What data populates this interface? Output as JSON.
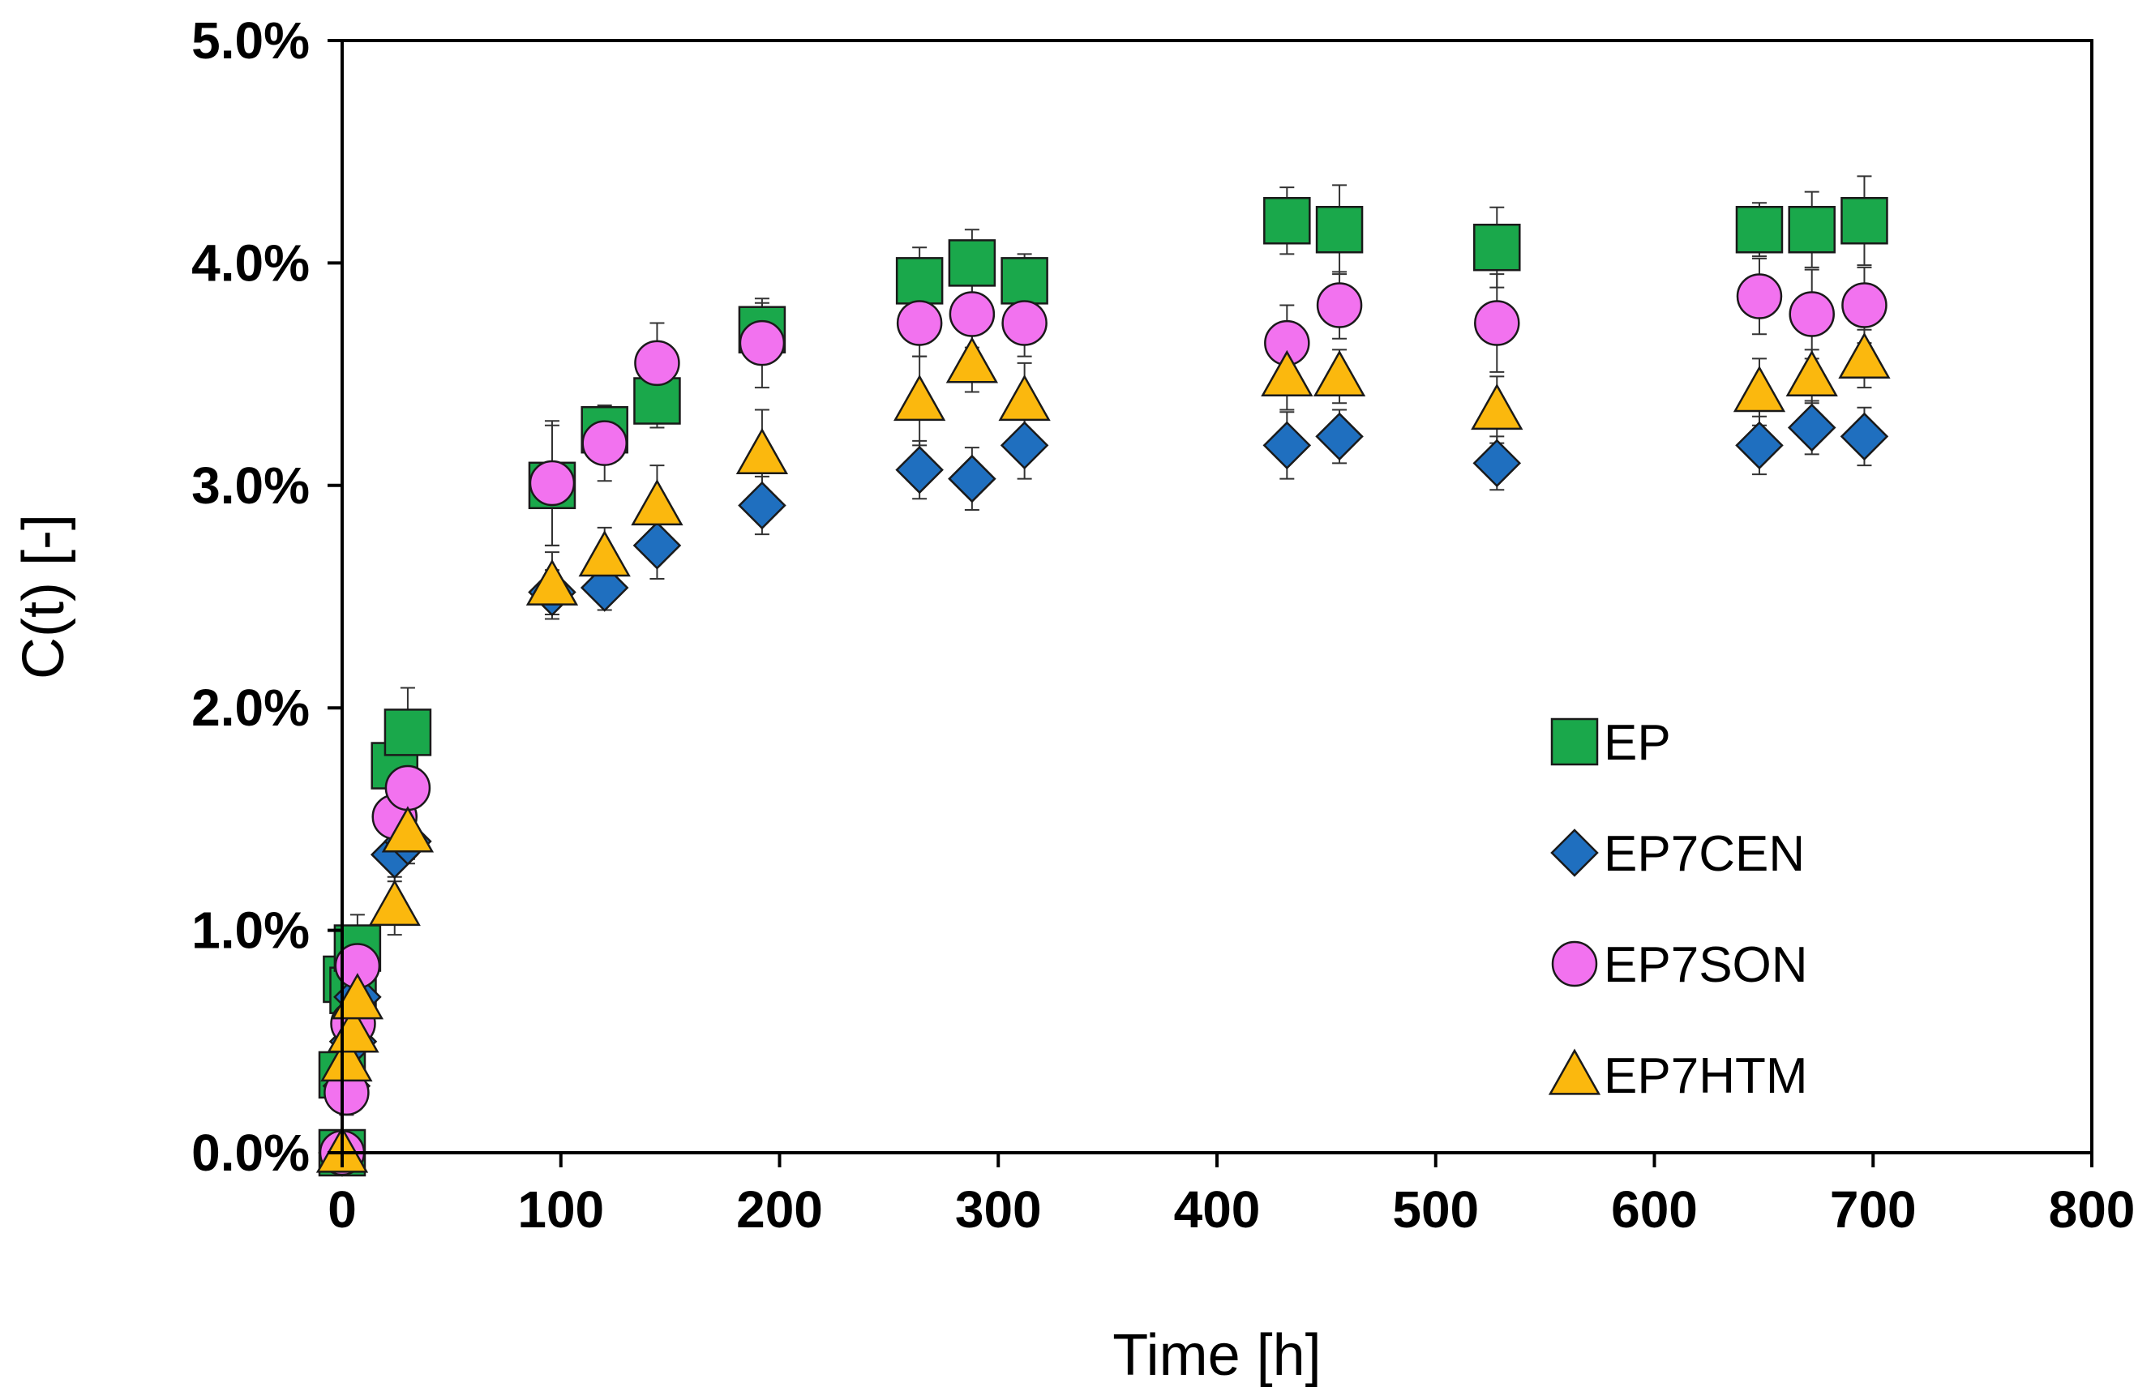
{
  "chart_data": {
    "type": "scatter",
    "title": "",
    "xlabel": "Time [h]",
    "ylabel": "C(t) [-]",
    "xlim": [
      0,
      800
    ],
    "ylim": [
      0,
      5
    ],
    "x_ticks": [
      0,
      100,
      200,
      300,
      400,
      500,
      600,
      700,
      800
    ],
    "x_tick_labels": [
      "0",
      "100",
      "200",
      "300",
      "400",
      "500",
      "600",
      "700",
      "800"
    ],
    "y_ticks": [
      0,
      1,
      2,
      3,
      4,
      5
    ],
    "y_tick_labels": [
      "0.0%",
      "1.0%",
      "2.0%",
      "3.0%",
      "4.0%",
      "5.0%"
    ],
    "grid": false,
    "legend_position": "bottom-right",
    "series": [
      {
        "name": "EP",
        "marker": "square",
        "color": "#1aa84b",
        "points": [
          {
            "x": 0,
            "y": 0.0,
            "err": 0.05
          },
          {
            "x": 0,
            "y": 0.35,
            "err": 0.08
          },
          {
            "x": 2,
            "y": 0.78,
            "err": 0.12
          },
          {
            "x": 5,
            "y": 0.73,
            "err": 0.13
          },
          {
            "x": 7,
            "y": 0.92,
            "err": 0.15
          },
          {
            "x": 24,
            "y": 1.74,
            "err": 0.17
          },
          {
            "x": 30,
            "y": 1.89,
            "err": 0.2
          },
          {
            "x": 96,
            "y": 3.0,
            "err": 0.27
          },
          {
            "x": 120,
            "y": 3.25,
            "err": 0.1
          },
          {
            "x": 144,
            "y": 3.38,
            "err": 0.12
          },
          {
            "x": 192,
            "y": 3.7,
            "err": 0.12
          },
          {
            "x": 264,
            "y": 3.92,
            "err": 0.15
          },
          {
            "x": 288,
            "y": 4.0,
            "err": 0.15
          },
          {
            "x": 312,
            "y": 3.92,
            "err": 0.12
          },
          {
            "x": 432,
            "y": 4.19,
            "err": 0.15
          },
          {
            "x": 456,
            "y": 4.15,
            "err": 0.2
          },
          {
            "x": 528,
            "y": 4.07,
            "err": 0.18
          },
          {
            "x": 648,
            "y": 4.15,
            "err": 0.12
          },
          {
            "x": 672,
            "y": 4.15,
            "err": 0.17
          },
          {
            "x": 696,
            "y": 4.19,
            "err": 0.2
          }
        ]
      },
      {
        "name": "EP7CEN",
        "marker": "diamond",
        "color": "#1f6fbf",
        "points": [
          {
            "x": 0,
            "y": 0.0,
            "err": 0.05
          },
          {
            "x": 2,
            "y": 0.3,
            "err": 0.08
          },
          {
            "x": 5,
            "y": 0.5,
            "err": 0.1
          },
          {
            "x": 7,
            "y": 0.7,
            "err": 0.1
          },
          {
            "x": 24,
            "y": 1.34,
            "err": 0.12
          },
          {
            "x": 30,
            "y": 1.4,
            "err": 0.1
          },
          {
            "x": 96,
            "y": 2.52,
            "err": 0.1
          },
          {
            "x": 120,
            "y": 2.54,
            "err": 0.1
          },
          {
            "x": 144,
            "y": 2.73,
            "err": 0.15
          },
          {
            "x": 192,
            "y": 2.91,
            "err": 0.13
          },
          {
            "x": 264,
            "y": 3.07,
            "err": 0.13
          },
          {
            "x": 288,
            "y": 3.03,
            "err": 0.14
          },
          {
            "x": 312,
            "y": 3.18,
            "err": 0.15
          },
          {
            "x": 432,
            "y": 3.18,
            "err": 0.15
          },
          {
            "x": 456,
            "y": 3.22,
            "err": 0.12
          },
          {
            "x": 528,
            "y": 3.1,
            "err": 0.12
          },
          {
            "x": 648,
            "y": 3.18,
            "err": 0.13
          },
          {
            "x": 672,
            "y": 3.26,
            "err": 0.12
          },
          {
            "x": 696,
            "y": 3.22,
            "err": 0.13
          }
        ]
      },
      {
        "name": "EP7SON",
        "marker": "circle",
        "color": "#f272ef",
        "points": [
          {
            "x": 0,
            "y": 0.0,
            "err": 0.05
          },
          {
            "x": 2,
            "y": 0.27,
            "err": 0.1
          },
          {
            "x": 5,
            "y": 0.58,
            "err": 0.1
          },
          {
            "x": 7,
            "y": 0.84,
            "err": 0.12
          },
          {
            "x": 24,
            "y": 1.51,
            "err": 0.15
          },
          {
            "x": 30,
            "y": 1.64,
            "err": 0.15
          },
          {
            "x": 96,
            "y": 3.01,
            "err": 0.28
          },
          {
            "x": 120,
            "y": 3.19,
            "err": 0.17
          },
          {
            "x": 144,
            "y": 3.55,
            "err": 0.18
          },
          {
            "x": 192,
            "y": 3.64,
            "err": 0.2
          },
          {
            "x": 264,
            "y": 3.73,
            "err": 0.15
          },
          {
            "x": 288,
            "y": 3.77,
            "err": 0.15
          },
          {
            "x": 312,
            "y": 3.73,
            "err": 0.15
          },
          {
            "x": 432,
            "y": 3.64,
            "err": 0.17
          },
          {
            "x": 456,
            "y": 3.81,
            "err": 0.15
          },
          {
            "x": 528,
            "y": 3.73,
            "err": 0.22
          },
          {
            "x": 648,
            "y": 3.85,
            "err": 0.17
          },
          {
            "x": 672,
            "y": 3.77,
            "err": 0.2
          },
          {
            "x": 696,
            "y": 3.81,
            "err": 0.17
          }
        ]
      },
      {
        "name": "EP7HTM",
        "marker": "triangle",
        "color": "#fbb80e",
        "points": [
          {
            "x": 0,
            "y": 0.0,
            "err": 0.05
          },
          {
            "x": 2,
            "y": 0.41,
            "err": 0.08
          },
          {
            "x": 5,
            "y": 0.54,
            "err": 0.1
          },
          {
            "x": 7,
            "y": 0.69,
            "err": 0.1
          },
          {
            "x": 24,
            "y": 1.11,
            "err": 0.13
          },
          {
            "x": 30,
            "y": 1.44,
            "err": 0.12
          },
          {
            "x": 96,
            "y": 2.55,
            "err": 0.15
          },
          {
            "x": 120,
            "y": 2.68,
            "err": 0.13
          },
          {
            "x": 144,
            "y": 2.91,
            "err": 0.18
          },
          {
            "x": 192,
            "y": 3.14,
            "err": 0.2
          },
          {
            "x": 264,
            "y": 3.38,
            "err": 0.2
          },
          {
            "x": 288,
            "y": 3.55,
            "err": 0.13
          },
          {
            "x": 312,
            "y": 3.38,
            "err": 0.17
          },
          {
            "x": 432,
            "y": 3.49,
            "err": 0.15
          },
          {
            "x": 456,
            "y": 3.49,
            "err": 0.12
          },
          {
            "x": 528,
            "y": 3.34,
            "err": 0.15
          },
          {
            "x": 648,
            "y": 3.42,
            "err": 0.15
          },
          {
            "x": 672,
            "y": 3.49,
            "err": 0.12
          },
          {
            "x": 696,
            "y": 3.57,
            "err": 0.13
          }
        ]
      }
    ]
  }
}
